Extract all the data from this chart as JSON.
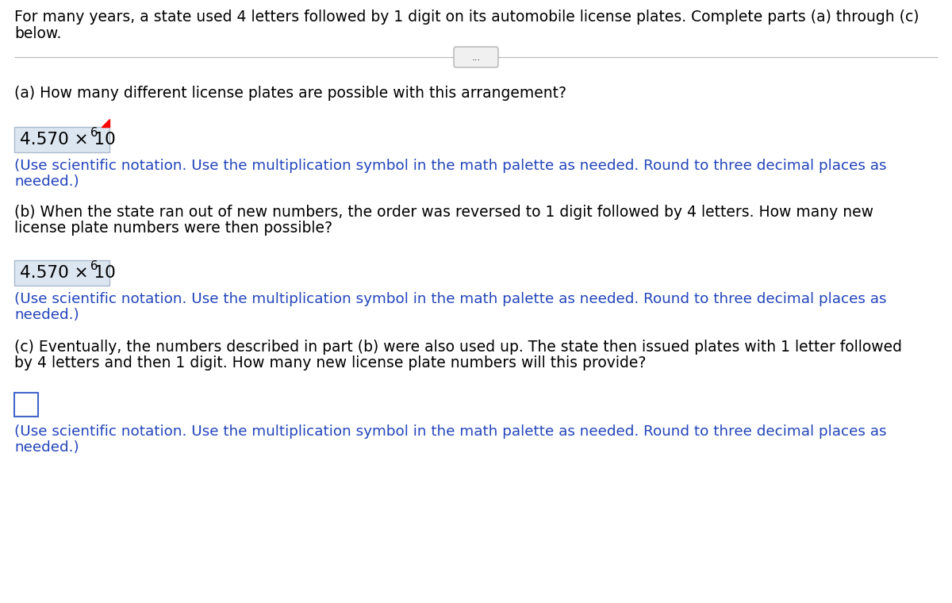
{
  "background_color": "#ffffff",
  "intro_text_line1": "For many years, a state used 4 letters followed by 1 digit on its automobile license plates. Complete parts (a) through (c)",
  "intro_text_line2": "below.",
  "divider_button_text": "...",
  "part_a_question": "(a) How many different license plates are possible with this arrangement?",
  "part_a_answer_main": "4.570 × 10",
  "part_a_answer_exp": "6",
  "part_a_hint_line1": "(Use scientific notation. Use the multiplication symbol in the math palette as needed. Round to three decimal places as",
  "part_a_hint_line2": "needed.)",
  "part_b_question_line1": "(b) When the state ran out of new numbers, the order was reversed to 1 digit followed by 4 letters. How many new",
  "part_b_question_line2": "license plate numbers were then possible?",
  "part_b_answer_main": "4.570 × 10",
  "part_b_answer_exp": "6",
  "part_b_hint_line1": "(Use scientific notation. Use the multiplication symbol in the math palette as needed. Round to three decimal places as",
  "part_b_hint_line2": "needed.)",
  "part_c_question_line1": "(c) Eventually, the numbers described in part (b) were also used up. The state then issued plates with 1 letter followed",
  "part_c_question_line2": "by 4 letters and then 1 digit. How many new license plate numbers will this provide?",
  "part_c_hint_line1": "(Use scientific notation. Use the multiplication symbol in the math palette as needed. Round to three decimal places as",
  "part_c_hint_line2": "needed.)",
  "text_color_black": "#000000",
  "text_color_blue": "#2244bb",
  "answer_box_fill": "#dce6f1",
  "answer_box_border": "#aabbcc",
  "empty_box_border": "#4466cc",
  "font_size_main": 13.5,
  "font_size_answer": 15.5,
  "font_size_hint": 13.2,
  "font_size_exp": 10.5
}
